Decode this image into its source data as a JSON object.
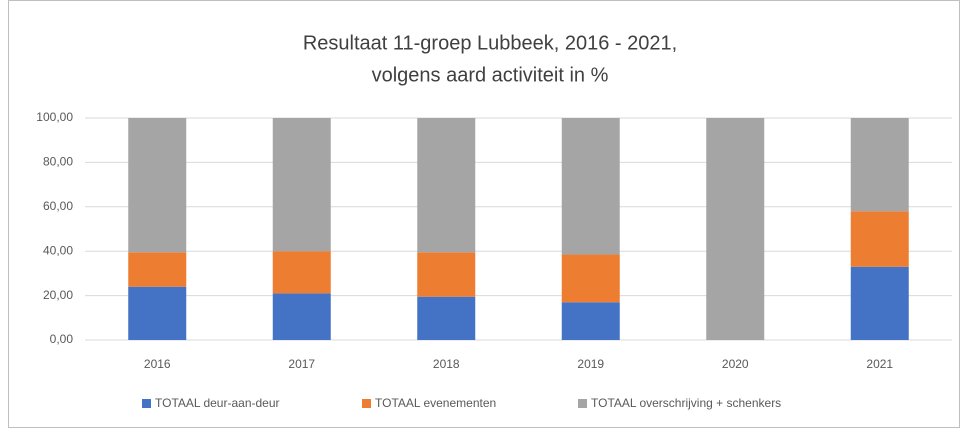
{
  "chart_data": {
    "type": "stacked_bar",
    "title": [
      "Resultaat  11-groep Lubbeek, 2016 - 2021,",
      "volgens aard activiteit in %"
    ],
    "categories": [
      "2016",
      "2017",
      "2018",
      "2019",
      "2020",
      "2021"
    ],
    "series": [
      {
        "name": "TOTAAL deur-aan-deur",
        "color": "#4472c4",
        "values": [
          24,
          21,
          19.5,
          17,
          0,
          33
        ]
      },
      {
        "name": "TOTAAL evenementen",
        "color": "#ed7d31",
        "values": [
          15.5,
          19,
          20,
          21.5,
          0,
          25
        ]
      },
      {
        "name": "TOTAAL overschrijving + schenkers",
        "color": "#a5a5a5",
        "values": [
          60.5,
          60,
          60.5,
          61.5,
          100,
          42
        ]
      }
    ],
    "ylim": [
      0,
      100
    ],
    "yticks": [
      {
        "value": 0,
        "label": "0,00"
      },
      {
        "value": 20,
        "label": "20,00"
      },
      {
        "value": 40,
        "label": "40,00"
      },
      {
        "value": 60,
        "label": "60,00"
      },
      {
        "value": 80,
        "label": "80,00"
      },
      {
        "value": 100,
        "label": "100,00"
      }
    ],
    "grid": true,
    "legend": "bottom"
  }
}
